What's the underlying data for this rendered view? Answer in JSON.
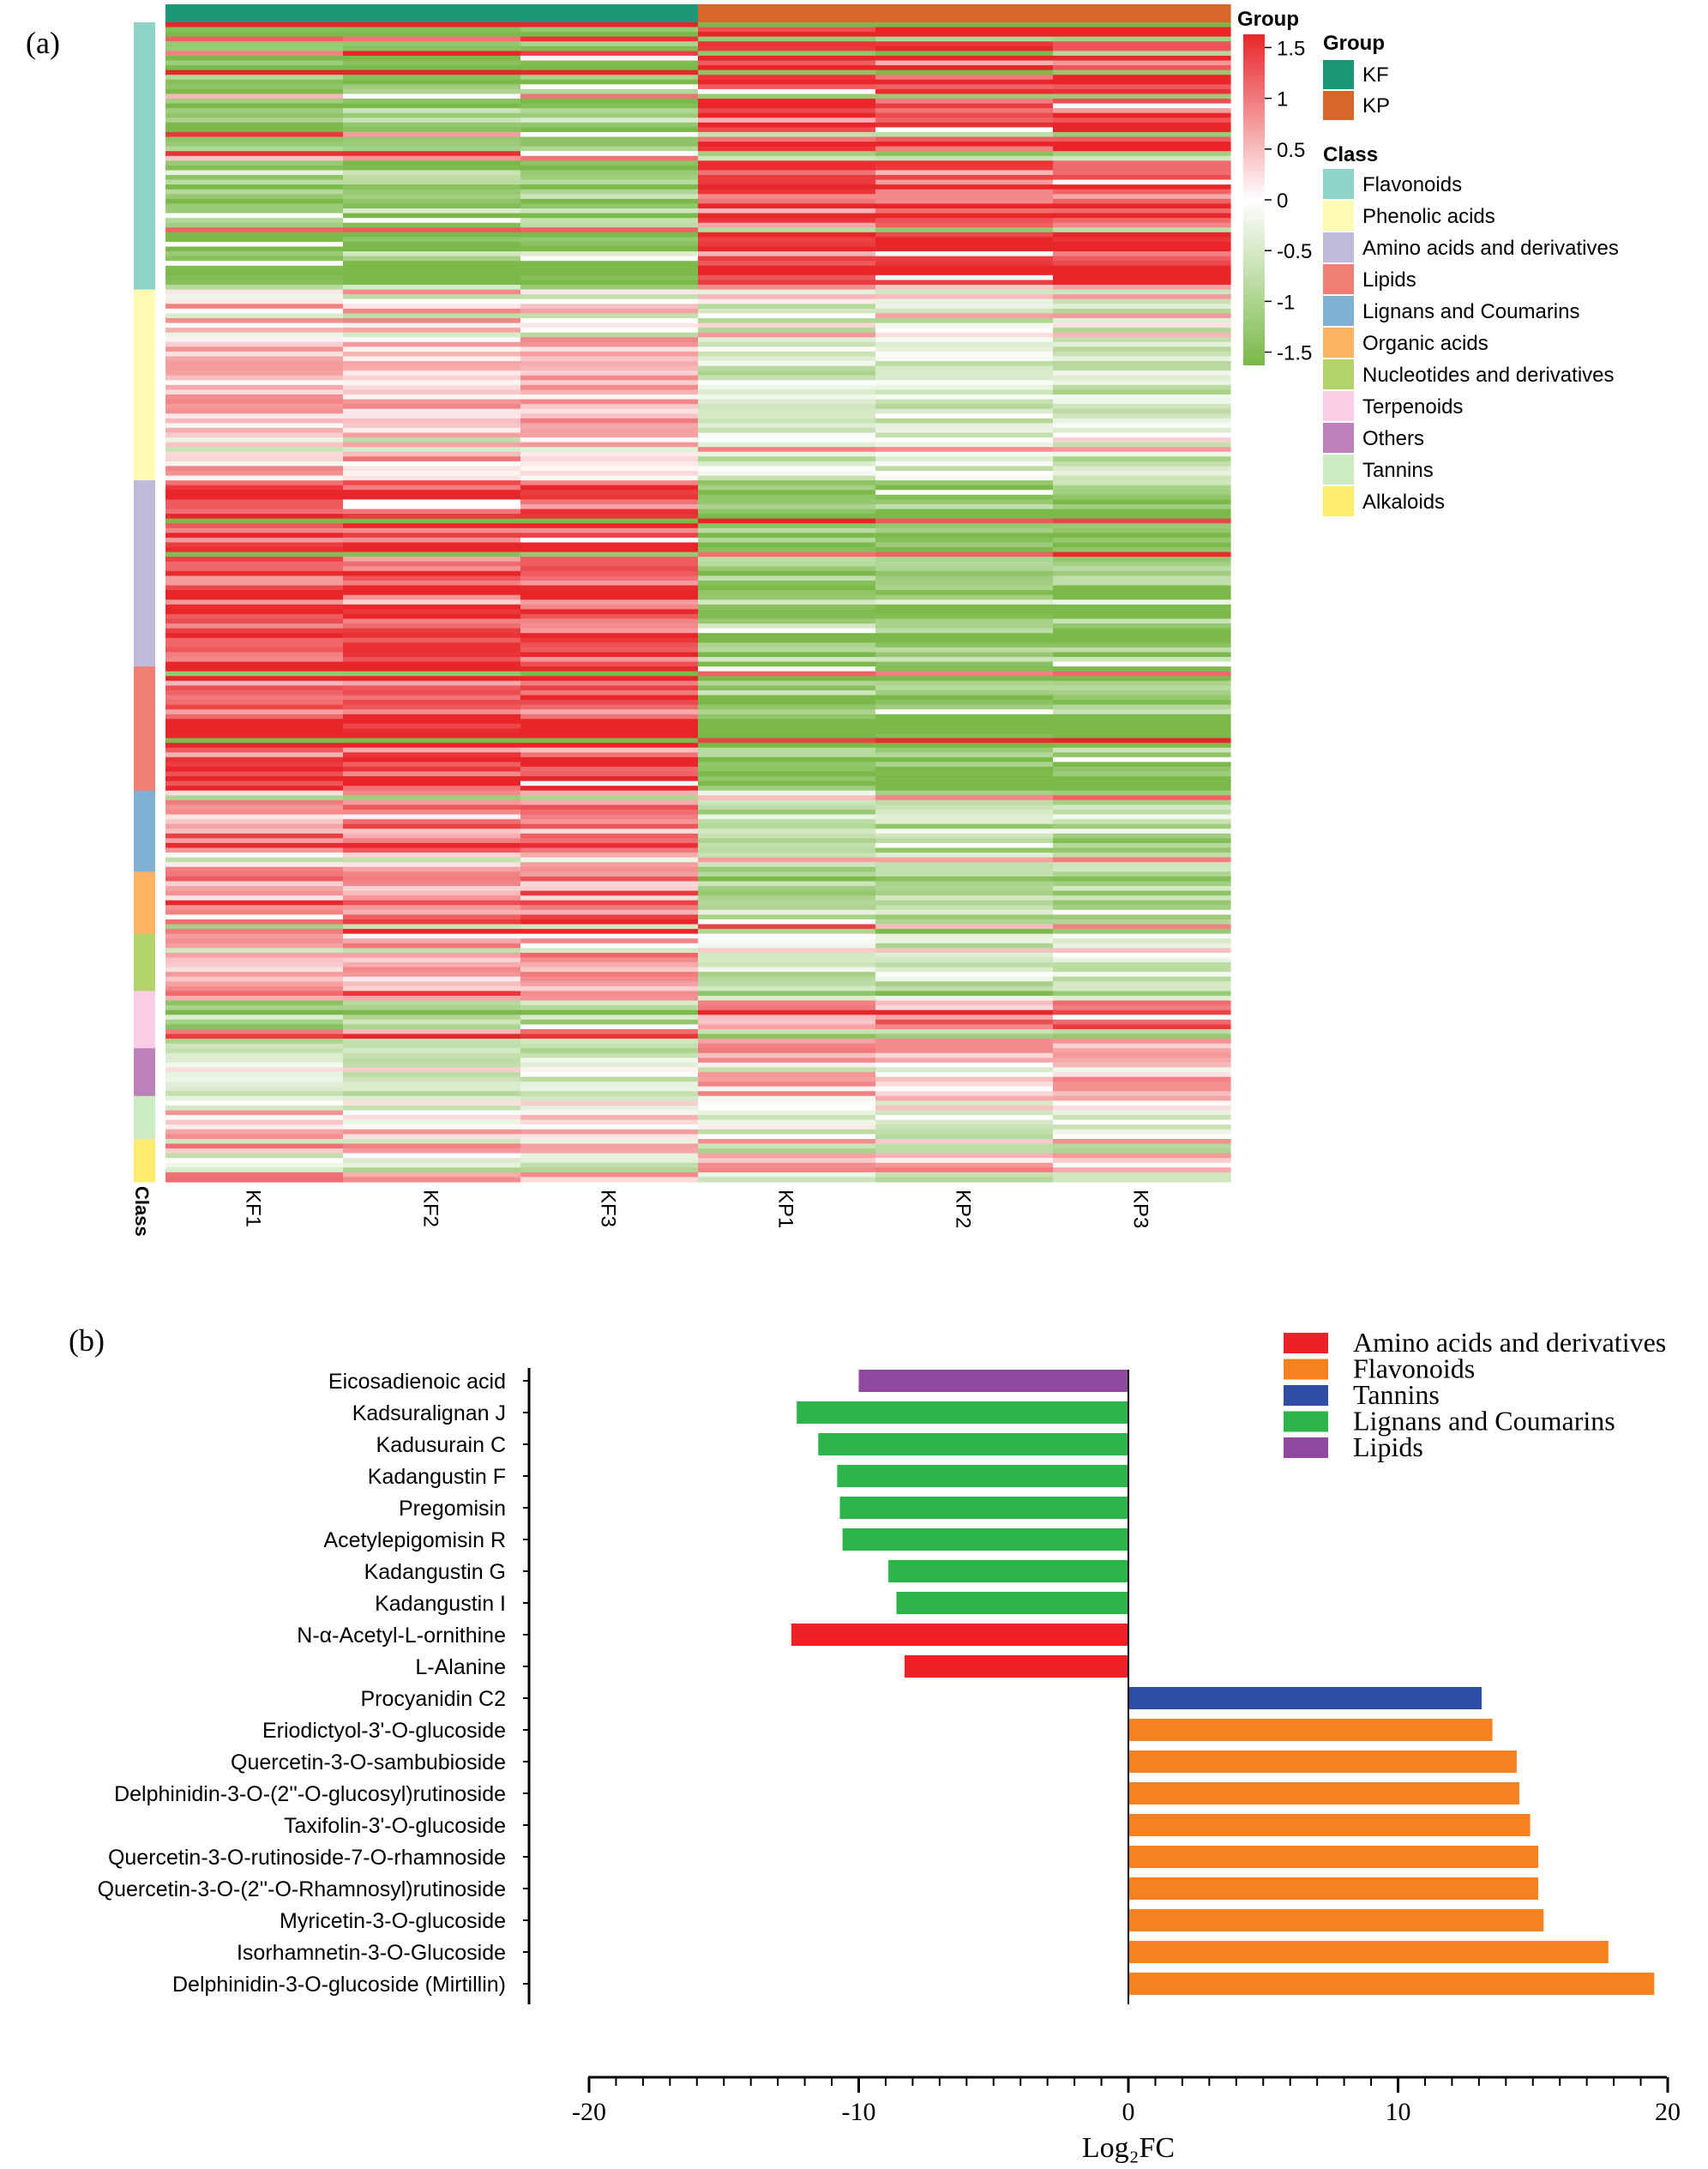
{
  "chart_data": [
    {
      "type": "heatmap",
      "panel_label": "(a)",
      "columns": [
        "KF1",
        "KF2",
        "KF3",
        "KP1",
        "KP2",
        "KP3"
      ],
      "column_groups": [
        "KF",
        "KF",
        "KF",
        "KP",
        "KP",
        "KP"
      ],
      "top_bar_title": "Group",
      "row_axis_label": "Class",
      "colorbar": {
        "ticks": [
          "1.5",
          "1",
          "0.5",
          "0",
          "-0.5",
          "-1",
          "-1.5"
        ],
        "range": [
          -1.5,
          1.5
        ],
        "high_color": "#e8262a",
        "mid_color": "#ffffff",
        "low_color": "#7ab94a"
      },
      "group_legend": {
        "title": "Group",
        "items": [
          {
            "label": "KF",
            "color": "#1a9878"
          },
          {
            "label": "KP",
            "color": "#d8652a"
          }
        ]
      },
      "class_legend": {
        "title": "Class",
        "items": [
          {
            "label": "Flavonoids",
            "color": "#8ed3c7"
          },
          {
            "label": "Phenolic acids",
            "color": "#fffab3"
          },
          {
            "label": "Amino acids and derivatives",
            "color": "#bebada"
          },
          {
            "label": "Lipids",
            "color": "#f17e73"
          },
          {
            "label": "Lignans and Coumarins",
            "color": "#80b1d3"
          },
          {
            "label": "Organic acids",
            "color": "#fdb462"
          },
          {
            "label": "Nucleotides and derivatives",
            "color": "#b3d46a"
          },
          {
            "label": "Terpenoids",
            "color": "#fbcde5"
          },
          {
            "label": "Others",
            "color": "#bc80bd"
          },
          {
            "label": "Tannins",
            "color": "#ccebc5"
          },
          {
            "label": "Alkaloids",
            "color": "#ffec6f"
          }
        ]
      },
      "class_blocks": [
        {
          "class": "Flavonoids",
          "rows": 56
        },
        {
          "class": "Phenolic acids",
          "rows": 40
        },
        {
          "class": "Amino acids and derivatives",
          "rows": 39
        },
        {
          "class": "Lipids",
          "rows": 26
        },
        {
          "class": "Lignans and Coumarins",
          "rows": 17
        },
        {
          "class": "Organic acids",
          "rows": 13
        },
        {
          "class": "Nucleotides and derivatives",
          "rows": 12
        },
        {
          "class": "Terpenoids",
          "rows": 12
        },
        {
          "class": "Others",
          "rows": 10
        },
        {
          "class": "Tannins",
          "rows": 9
        },
        {
          "class": "Alkaloids",
          "rows": 9
        }
      ],
      "block_pattern_kf_minus_kp": [
        -1.3,
        0.4,
        1.2,
        1.3,
        0.8,
        0.9,
        0.6,
        -1.1,
        -0.6,
        0.3,
        -0.5
      ]
    },
    {
      "type": "bar",
      "orientation": "horizontal",
      "panel_label": "(b)",
      "xlabel": "Log₂FC",
      "xlim": [
        -20,
        20
      ],
      "xticks": [
        -20,
        -10,
        0,
        10,
        20
      ],
      "legend_position": "top-right",
      "legend": [
        {
          "label": "Amino acids and derivatives",
          "color": "#ec2227"
        },
        {
          "label": "Flavonoids",
          "color": "#f5821f"
        },
        {
          "label": "Tannins",
          "color": "#2e4ea3"
        },
        {
          "label": "Lignans and Coumarins",
          "color": "#2bb54b"
        },
        {
          "label": "Lipids",
          "color": "#8f4aa0"
        }
      ],
      "categories": [
        "Eicosadienoic acid",
        "Kadsuralignan J",
        "Kadusurain C",
        "Kadangustin F",
        "Pregomisin",
        "Acetylepigomisin R",
        "Kadangustin G",
        "Kadangustin I",
        "N-α-Acetyl-L-ornithine",
        "L-Alanine",
        "Procyanidin C2",
        "Eriodictyol-3'-O-glucoside",
        "Quercetin-3-O-sambubioside",
        "Delphinidin-3-O-(2''-O-glucosyl)rutinoside",
        "Taxifolin-3'-O-glucoside",
        "Quercetin-3-O-rutinoside-7-O-rhamnoside",
        "Quercetin-3-O-(2''-O-Rhamnosyl)rutinoside",
        "Myricetin-3-O-glucoside",
        "Isorhamnetin-3-O-Glucoside",
        "Delphinidin-3-O-glucoside (Mirtillin)"
      ],
      "values": [
        -10.0,
        -12.3,
        -11.5,
        -10.8,
        -10.7,
        -10.6,
        -8.9,
        -8.6,
        -12.5,
        -8.3,
        13.1,
        13.5,
        14.4,
        14.5,
        14.9,
        15.2,
        15.2,
        15.4,
        17.8,
        19.5
      ],
      "classes": [
        "Lipids",
        "Lignans and Coumarins",
        "Lignans and Coumarins",
        "Lignans and Coumarins",
        "Lignans and Coumarins",
        "Lignans and Coumarins",
        "Lignans and Coumarins",
        "Lignans and Coumarins",
        "Amino acids and derivatives",
        "Amino acids and derivatives",
        "Tannins",
        "Flavonoids",
        "Flavonoids",
        "Flavonoids",
        "Flavonoids",
        "Flavonoids",
        "Flavonoids",
        "Flavonoids",
        "Flavonoids",
        "Flavonoids"
      ]
    }
  ]
}
